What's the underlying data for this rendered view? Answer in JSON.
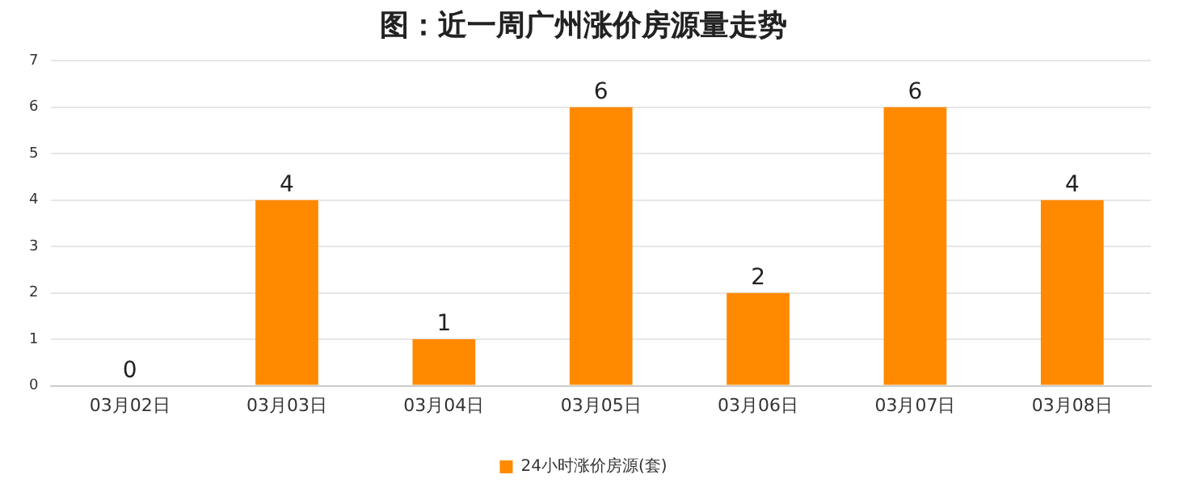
{
  "chart_data": {
    "type": "bar",
    "title": "图：近一周广州涨价房源量走势",
    "categories": [
      "03月02日",
      "03月03日",
      "03月04日",
      "03月05日",
      "03月06日",
      "03月07日",
      "03月08日"
    ],
    "series": [
      {
        "name": "24小时涨价房源(套)",
        "color": "#ff8a00",
        "values": [
          0,
          4,
          1,
          6,
          2,
          6,
          4
        ]
      }
    ],
    "ylim": [
      0,
      7
    ],
    "yticks": [
      0,
      1,
      2,
      3,
      4,
      5,
      6,
      7
    ],
    "grid": "y",
    "legend": "bottom",
    "data_labels": true
  }
}
